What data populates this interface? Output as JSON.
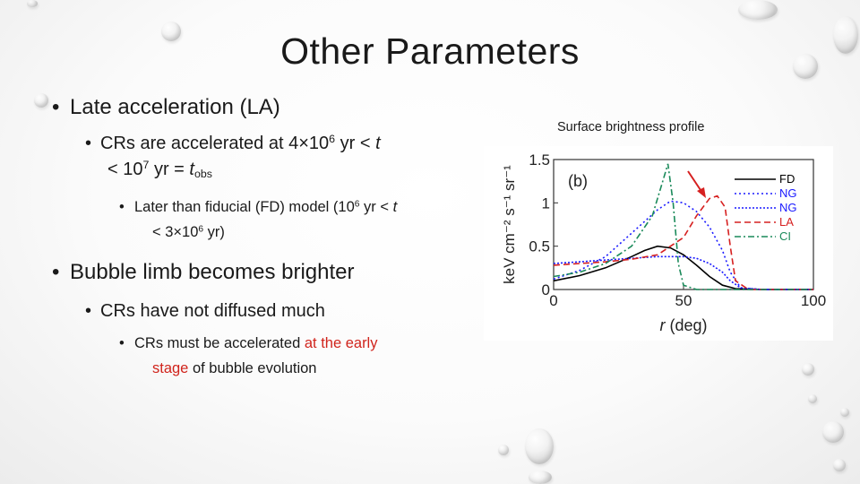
{
  "slide": {
    "title": "Other Parameters",
    "bullets": {
      "la": "Late acceleration (LA)",
      "crs_acc_a": "CRs are accelerated at 4×10",
      "crs_acc_exp1": "6",
      "crs_acc_b": " yr < ",
      "crs_acc_t": "t",
      "crs_acc_c": "< 10",
      "crs_acc_exp2": "7",
      "crs_acc_d": " yr = ",
      "crs_acc_t2": "t",
      "crs_acc_sub": "obs",
      "fd_a": "Later than fiducial (FD) model (10",
      "fd_exp1": "6",
      "fd_b": " yr < ",
      "fd_t": "t",
      "fd_c": "< 3×10",
      "fd_exp2": "6",
      "fd_d": " yr)",
      "limb": "Bubble limb becomes brighter",
      "not_diffused": "CRs have not diffused much",
      "must_a": "CRs must be accelerated ",
      "must_red1": "at the early",
      "must_red2": "stage",
      "must_b": " of bubble evolution"
    },
    "plot_caption": "Surface brightness profile"
  },
  "chart_data": {
    "type": "line",
    "panel_label": "(b)",
    "xlabel": "r (deg)",
    "ylabel": "keV cm⁻² s⁻¹ sr⁻¹",
    "xlim": [
      0,
      100
    ],
    "ylim": [
      0,
      1.5
    ],
    "xticks": [
      "0",
      "50",
      "100"
    ],
    "yticks": [
      "0",
      "0.5",
      "1",
      "1.5"
    ],
    "legend_position": "top-right",
    "series": [
      {
        "name": "FD",
        "color": "#000000",
        "dash": "solid",
        "x": [
          0,
          10,
          20,
          30,
          35,
          40,
          45,
          50,
          55,
          60,
          65,
          70,
          80,
          100
        ],
        "y": [
          0.1,
          0.16,
          0.25,
          0.38,
          0.45,
          0.5,
          0.48,
          0.4,
          0.28,
          0.15,
          0.05,
          0.01,
          0,
          0
        ]
      },
      {
        "name": "NG",
        "color": "#1a1aff",
        "dash": "dot",
        "x": [
          0,
          10,
          20,
          30,
          40,
          45,
          50,
          55,
          60,
          65,
          68,
          72,
          80,
          100
        ],
        "y": [
          0.12,
          0.22,
          0.38,
          0.65,
          0.92,
          1.02,
          1.0,
          0.9,
          0.72,
          0.45,
          0.2,
          0.02,
          0,
          0
        ]
      },
      {
        "name": "NG",
        "color": "#1a1aff",
        "dash": "dot-tight",
        "x": [
          0,
          10,
          20,
          30,
          40,
          50,
          55,
          60,
          65,
          68,
          72,
          80,
          100
        ],
        "y": [
          0.3,
          0.32,
          0.34,
          0.36,
          0.38,
          0.38,
          0.36,
          0.3,
          0.2,
          0.1,
          0.02,
          0,
          0
        ]
      },
      {
        "name": "LA",
        "color": "#d62020",
        "dash": "dash",
        "x": [
          0,
          10,
          20,
          30,
          40,
          50,
          55,
          60,
          63,
          66,
          68,
          70,
          75,
          100
        ],
        "y": [
          0.28,
          0.3,
          0.32,
          0.35,
          0.4,
          0.6,
          0.85,
          1.05,
          1.08,
          0.95,
          0.5,
          0.1,
          0,
          0
        ]
      },
      {
        "name": "CI",
        "color": "#1a8a5a",
        "dash": "dashdot",
        "x": [
          0,
          10,
          20,
          30,
          38,
          42,
          44,
          46,
          48,
          50,
          55,
          100
        ],
        "y": [
          0.15,
          0.2,
          0.3,
          0.5,
          0.85,
          1.25,
          1.45,
          1.0,
          0.3,
          0.05,
          0,
          0
        ]
      }
    ]
  }
}
